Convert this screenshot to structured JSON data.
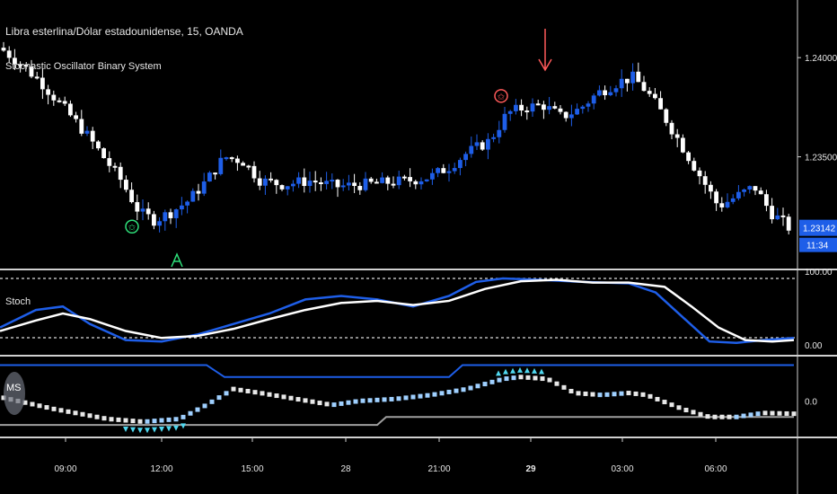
{
  "header": {
    "symbol_title": "Libra esterlina/Dólar estadounidense, 15, OANDA",
    "indicator_title": "Stochastic Oscillator Binary System"
  },
  "panes": {
    "stoch_label": "Stoch",
    "ms_label": "MS"
  },
  "price_axis": {
    "ticks": [
      "1.24000",
      "1.23500"
    ],
    "last_price": "1.23142",
    "countdown": "11:34"
  },
  "stoch_axis": {
    "ticks": [
      "100.00",
      "0.00"
    ]
  },
  "ms_axis": {
    "ticks": [
      "0.0"
    ]
  },
  "time_axis": {
    "ticks": [
      "09:00",
      "12:00",
      "15:00",
      "28",
      "21:00",
      "29",
      "03:00",
      "06:00"
    ]
  },
  "colors": {
    "background": "#000000",
    "bull_candle": "#1e5ee8",
    "bear_candle": "#ffffff",
    "stoch_k": "#1e5ee8",
    "stoch_d": "#ffffff",
    "ms_upper": "#1e5ee8",
    "ms_lower": "#9e9e9e",
    "buy_signal": "#2ee07a",
    "sell_signal": "#ff5a5a",
    "cyan_marker": "#4fd8f0"
  },
  "chart_data": [
    {
      "type": "candlestick",
      "title": "Libra esterlina/Dólar estadounidense, 15, OANDA",
      "x_ticks": [
        "09:00",
        "12:00",
        "15:00",
        "28",
        "21:00",
        "29",
        "03:00",
        "06:00"
      ],
      "y_ticks": [
        1.24,
        1.235
      ],
      "last_price": 1.23142,
      "close_path": [
        [
          0,
          1.2405
        ],
        [
          20,
          1.2398
        ],
        [
          45,
          1.2388
        ],
        [
          70,
          1.2375
        ],
        [
          95,
          1.2362
        ],
        [
          115,
          1.235
        ],
        [
          135,
          1.2338
        ],
        [
          155,
          1.2322
        ],
        [
          172,
          1.2318
        ],
        [
          190,
          1.2322
        ],
        [
          210,
          1.2328
        ],
        [
          230,
          1.2338
        ],
        [
          250,
          1.235
        ],
        [
          270,
          1.2348
        ],
        [
          290,
          1.2338
        ],
        [
          315,
          1.2336
        ],
        [
          345,
          1.2338
        ],
        [
          375,
          1.2335
        ],
        [
          405,
          1.2336
        ],
        [
          430,
          1.2337
        ],
        [
          455,
          1.2338
        ],
        [
          480,
          1.234
        ],
        [
          500,
          1.2345
        ],
        [
          520,
          1.2352
        ],
        [
          545,
          1.2358
        ],
        [
          565,
          1.2372
        ],
        [
          585,
          1.2375
        ],
        [
          605,
          1.2376
        ],
        [
          625,
          1.237
        ],
        [
          645,
          1.2374
        ],
        [
          665,
          1.2382
        ],
        [
          690,
          1.2388
        ],
        [
          705,
          1.239
        ],
        [
          720,
          1.2383
        ],
        [
          740,
          1.237
        ],
        [
          760,
          1.2355
        ],
        [
          780,
          1.234
        ],
        [
          800,
          1.2325
        ],
        [
          820,
          1.233
        ],
        [
          840,
          1.2335
        ],
        [
          858,
          1.2322
        ],
        [
          872,
          1.2317
        ],
        [
          884,
          1.2312
        ]
      ],
      "signals": [
        {
          "type": "buy_arrow",
          "x": 197
        },
        {
          "type": "sell_arrow",
          "x": 607
        },
        {
          "type": "buy_star",
          "x": 147
        },
        {
          "type": "sell_star",
          "x": 558
        }
      ]
    },
    {
      "type": "line",
      "title": "Stoch",
      "y_ticks": [
        100,
        0
      ],
      "ylim": [
        0,
        100
      ],
      "series": [
        {
          "color": "#1e5ee8",
          "points": [
            [
              0,
              30
            ],
            [
              40,
              55
            ],
            [
              70,
              60
            ],
            [
              100,
              35
            ],
            [
              140,
              12
            ],
            [
              180,
              10
            ],
            [
              220,
              20
            ],
            [
              260,
              35
            ],
            [
              300,
              50
            ],
            [
              340,
              70
            ],
            [
              380,
              75
            ],
            [
              420,
              70
            ],
            [
              460,
              60
            ],
            [
              500,
              75
            ],
            [
              530,
              95
            ],
            [
              560,
              100
            ],
            [
              600,
              98
            ],
            [
              650,
              95
            ],
            [
              700,
              93
            ],
            [
              730,
              80
            ],
            [
              760,
              45
            ],
            [
              790,
              10
            ],
            [
              820,
              8
            ],
            [
              850,
              12
            ],
            [
              884,
              15
            ]
          ]
        },
        {
          "color": "#ffffff",
          "points": [
            [
              0,
              25
            ],
            [
              40,
              40
            ],
            [
              70,
              50
            ],
            [
              100,
              42
            ],
            [
              140,
              25
            ],
            [
              180,
              15
            ],
            [
              220,
              18
            ],
            [
              260,
              28
            ],
            [
              300,
              42
            ],
            [
              340,
              55
            ],
            [
              380,
              65
            ],
            [
              420,
              68
            ],
            [
              460,
              62
            ],
            [
              500,
              68
            ],
            [
              540,
              85
            ],
            [
              580,
              96
            ],
            [
              620,
              98
            ],
            [
              660,
              94
            ],
            [
              700,
              94
            ],
            [
              740,
              88
            ],
            [
              770,
              60
            ],
            [
              800,
              30
            ],
            [
              830,
              12
            ],
            [
              860,
              10
            ],
            [
              884,
              12
            ]
          ]
        }
      ]
    },
    {
      "type": "line",
      "title": "MS",
      "y_ticks": [
        0
      ],
      "series": [
        {
          "color": "#1e5ee8",
          "points": [
            [
              0,
              90
            ],
            [
              230,
              90
            ],
            [
              250,
              60
            ],
            [
              500,
              60
            ],
            [
              515,
              90
            ],
            [
              884,
              90
            ]
          ]
        },
        {
          "color": "#9e9e9e",
          "points": [
            [
              0,
              -60
            ],
            [
              420,
              -60
            ],
            [
              430,
              -40
            ],
            [
              884,
              -40
            ]
          ]
        }
      ],
      "dots_path": [
        [
          0,
          10
        ],
        [
          60,
          -20
        ],
        [
          120,
          -45
        ],
        [
          160,
          -52
        ],
        [
          200,
          -45
        ],
        [
          230,
          -10
        ],
        [
          260,
          30
        ],
        [
          290,
          20
        ],
        [
          330,
          5
        ],
        [
          370,
          -10
        ],
        [
          400,
          0
        ],
        [
          440,
          5
        ],
        [
          480,
          15
        ],
        [
          520,
          30
        ],
        [
          560,
          55
        ],
        [
          580,
          60
        ],
        [
          610,
          55
        ],
        [
          640,
          20
        ],
        [
          670,
          15
        ],
        [
          700,
          20
        ],
        [
          720,
          15
        ],
        [
          760,
          -20
        ],
        [
          790,
          -40
        ],
        [
          820,
          -40
        ],
        [
          850,
          -30
        ],
        [
          884,
          -32
        ]
      ]
    }
  ]
}
